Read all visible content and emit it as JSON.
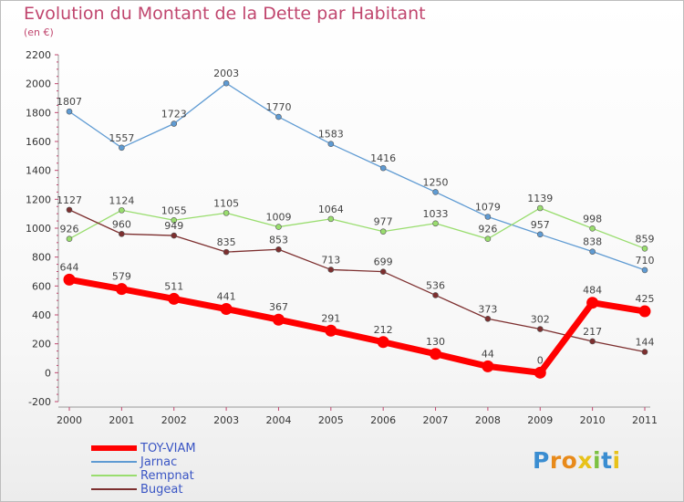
{
  "title": "Evolution du Montant de la Dette par Habitant",
  "subtitle": "(en €)",
  "logo": {
    "letters": [
      "P",
      "r",
      "o",
      "x",
      "i",
      "t",
      "i"
    ],
    "colors": [
      "#3a8dd1",
      "#e88a1a",
      "#e88a1a",
      "#e8c21a",
      "#7cc142",
      "#3a8dd1",
      "#e8c21a"
    ]
  },
  "chart_data": {
    "type": "line",
    "x": [
      "2000",
      "2001",
      "2002",
      "2003",
      "2004",
      "2005",
      "2006",
      "2007",
      "2008",
      "2009",
      "2010",
      "2011"
    ],
    "ylim": [
      -200,
      2200
    ],
    "yticks": [
      -200,
      0,
      200,
      400,
      600,
      800,
      1000,
      1200,
      1400,
      1600,
      1800,
      2000,
      2200
    ],
    "grid": false,
    "legend_position": "bottom-left",
    "series": [
      {
        "name": "Jarnac",
        "color": "#5f9bd3",
        "values": [
          1807,
          1557,
          1723,
          2003,
          1770,
          1583,
          1416,
          1250,
          1079,
          957,
          838,
          710
        ]
      },
      {
        "name": "Rempnat",
        "color": "#99dd6e",
        "values": [
          926,
          1124,
          1055,
          1105,
          1009,
          1064,
          977,
          1033,
          926,
          1139,
          998,
          859
        ]
      },
      {
        "name": "Bugeat",
        "color": "#7d2f2f",
        "values": [
          1127,
          960,
          949,
          835,
          853,
          713,
          699,
          536,
          373,
          302,
          217,
          144
        ]
      },
      {
        "name": "TOY-VIAM",
        "color": "#ff0000",
        "values": [
          644,
          579,
          511,
          441,
          367,
          291,
          212,
          130,
          44,
          0,
          484,
          425
        ]
      }
    ]
  }
}
